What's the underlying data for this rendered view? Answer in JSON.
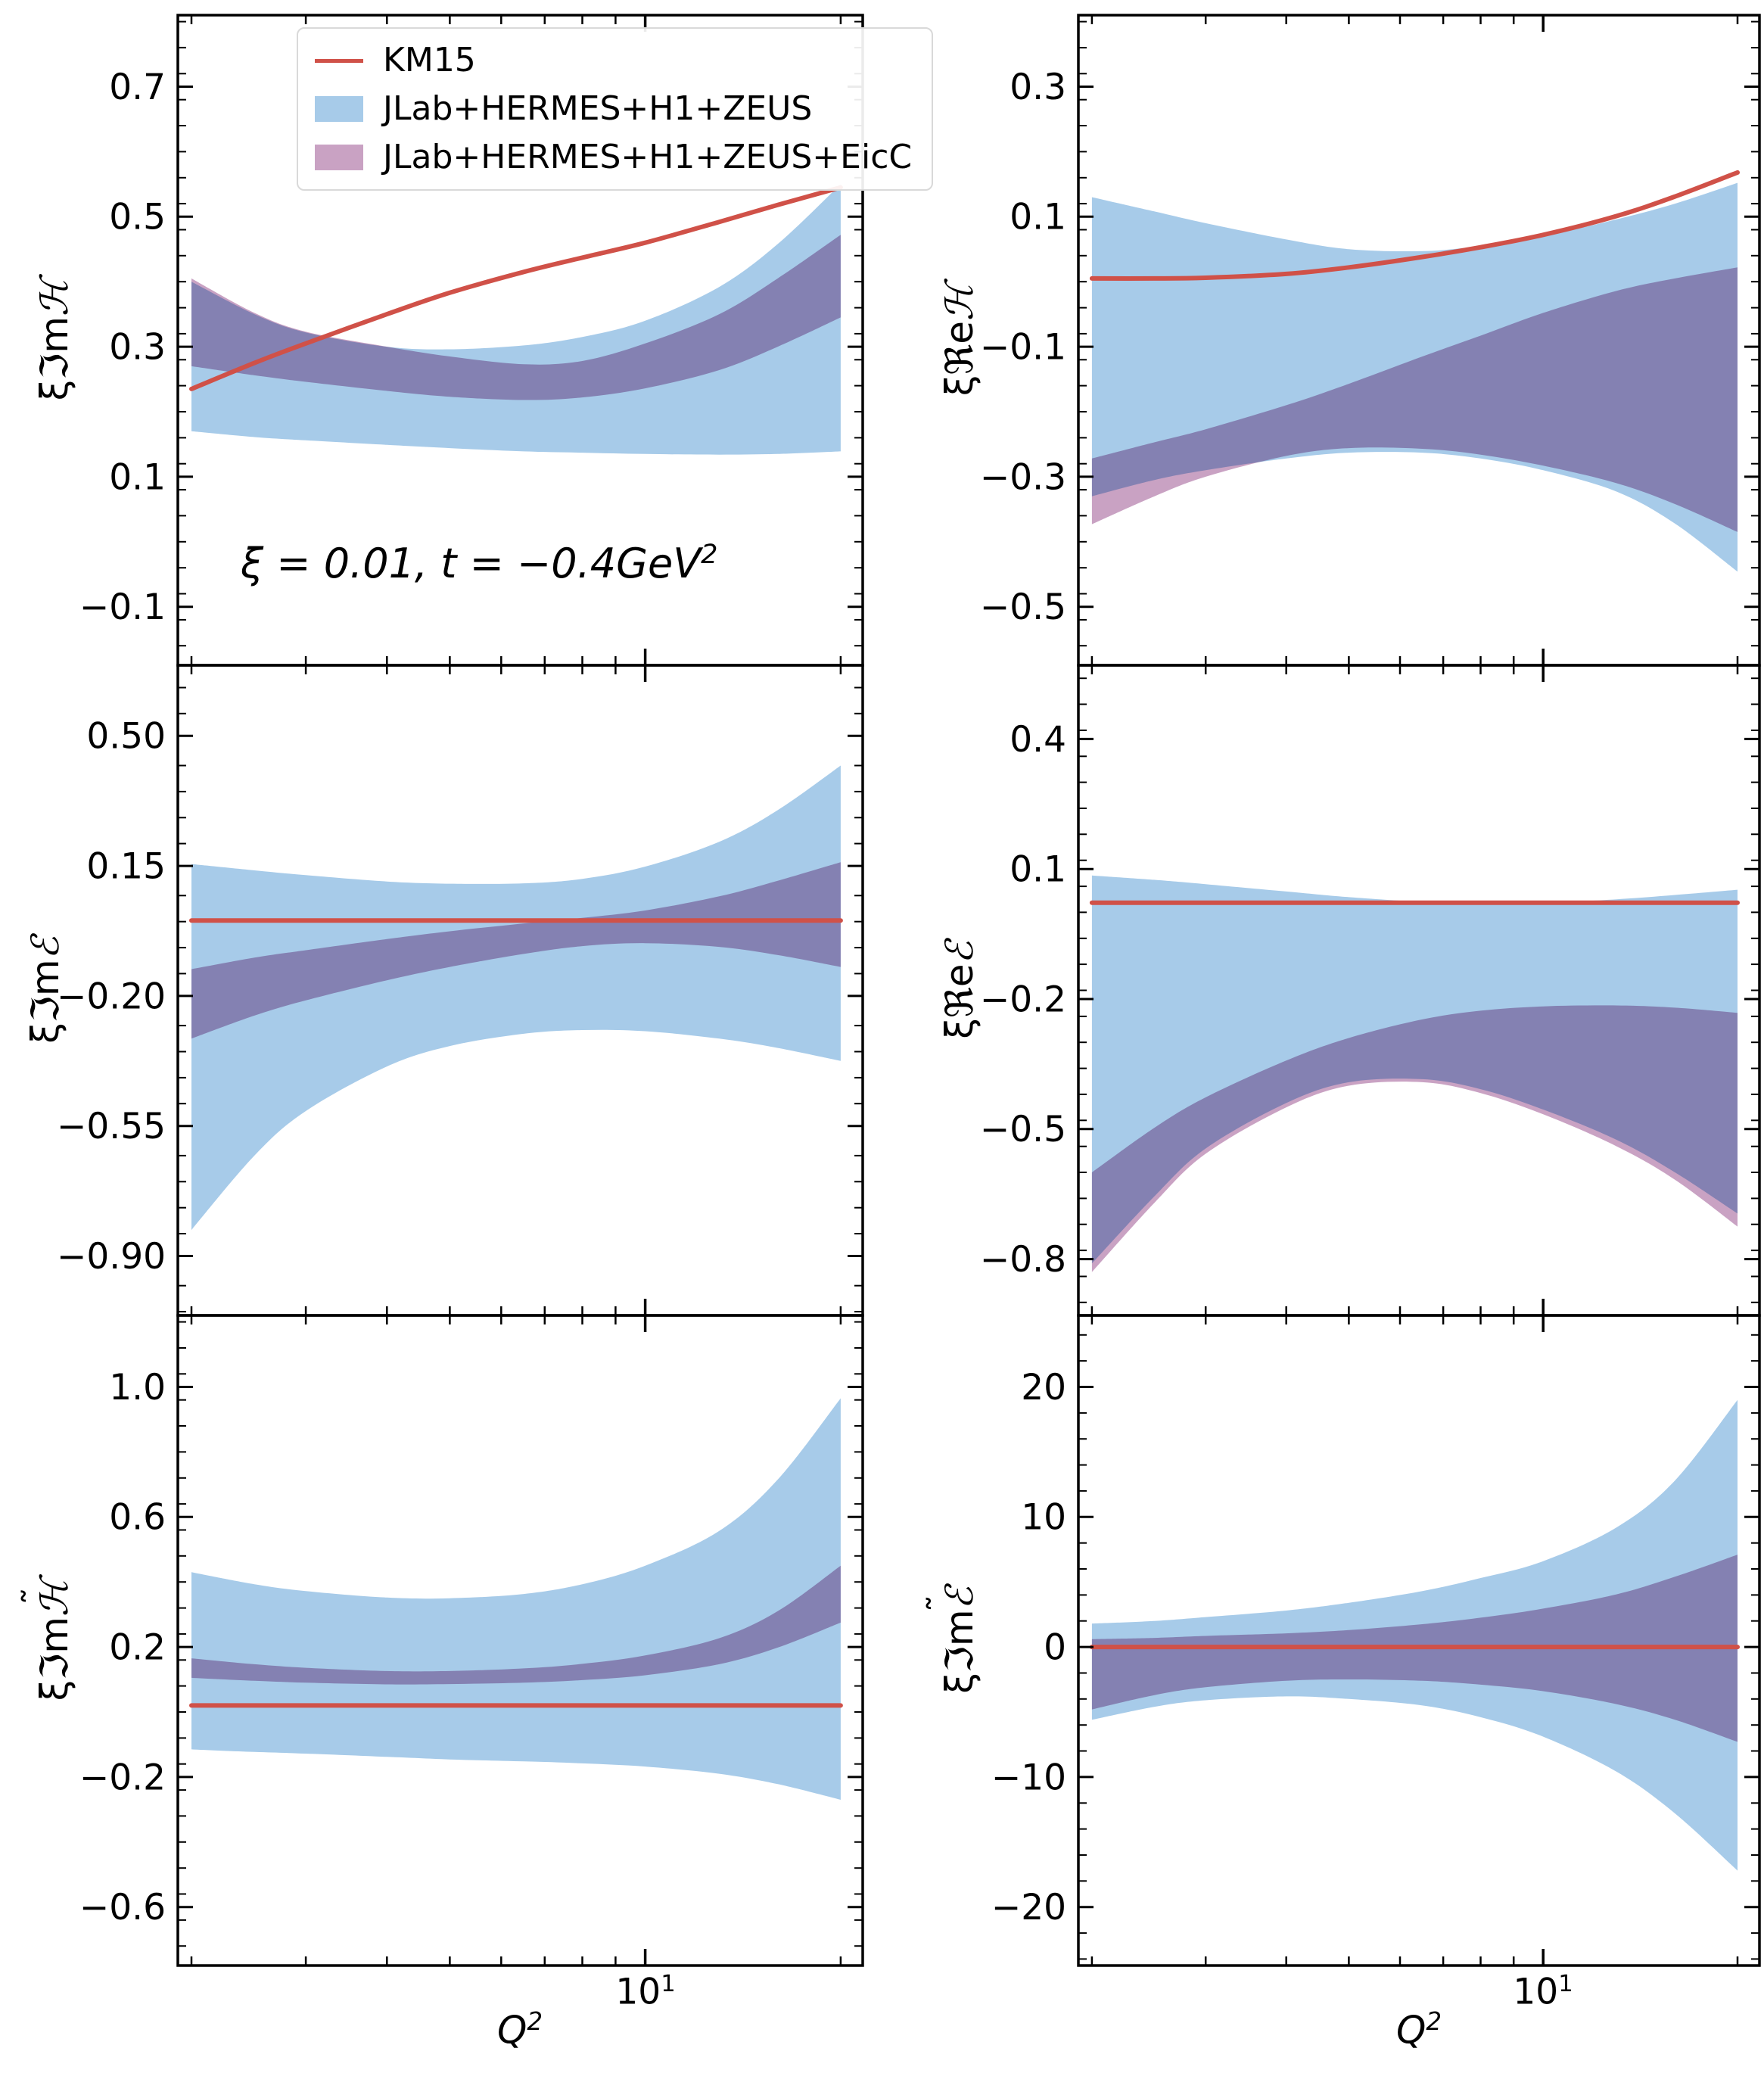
{
  "figure": {
    "annotation": {
      "text": "ξ = 0.01, t = −0.4GeV",
      "sup": "2"
    },
    "xaxis": {
      "label_base": "Q",
      "label_sup": "2",
      "major_tick_base": "10",
      "major_tick_sup": "1"
    }
  },
  "chart_data": {
    "type": "area",
    "x_scale": "log",
    "xlabel": "Q^2",
    "x_range": [
      2,
      20
    ],
    "x_axis_log10_limits": [
      0.28,
      1.335
    ],
    "x_major_ticks": [
      10
    ],
    "x_minor_ticks": [
      2,
      3,
      4,
      5,
      6,
      7,
      8,
      9,
      20
    ],
    "grid": false,
    "legend_position": "upper-left of first panel",
    "legend": [
      {
        "series": "km15",
        "type": "line",
        "label": "KM15"
      },
      {
        "series": "band_wide",
        "type": "band",
        "label": "JLab+HERMES+H1+ZEUS"
      },
      {
        "series": "band_eicc",
        "type": "band",
        "label": "JLab+HERMES+H1+ZEUS+EicC"
      }
    ],
    "colors": {
      "km15": "#d05148",
      "band_wide": "#a7cbe9",
      "band_eicc": "#c9a2c3",
      "band_overlap_seen": "#8680b4",
      "axes": "#000000"
    },
    "x": [
      2,
      2.5,
      3,
      4,
      5,
      6.5,
      8,
      10,
      13,
      16,
      20
    ],
    "panels": [
      {
        "name": "xi-Im-H",
        "col": 0,
        "row": 0,
        "ylabel_prefix": "ξℑm",
        "ylabel_letter": "ℋ",
        "ylabel_tilde": "",
        "ylim": [
          -0.19,
          0.81
        ],
        "yticks": [
          {
            "v": 0.7,
            "label": "0.7"
          },
          {
            "v": 0.5,
            "label": "0.5"
          },
          {
            "v": 0.3,
            "label": "0.3"
          },
          {
            "v": 0.1,
            "label": "0.1"
          },
          {
            "v": -0.1,
            "label": "−0.1"
          }
        ],
        "y_minor_step": 0.04,
        "km15": [
          0.235,
          0.275,
          0.305,
          0.35,
          0.383,
          0.415,
          0.437,
          0.46,
          0.492,
          0.518,
          0.545
        ],
        "band_wide_lo": [
          0.17,
          0.161,
          0.156,
          0.149,
          0.144,
          0.139,
          0.137,
          0.135,
          0.134,
          0.135,
          0.139
        ],
        "band_wide_hi": [
          0.4,
          0.35,
          0.322,
          0.3,
          0.296,
          0.302,
          0.315,
          0.34,
          0.392,
          0.458,
          0.55
        ],
        "band_eicc_lo": [
          0.27,
          0.256,
          0.246,
          0.232,
          0.223,
          0.218,
          0.222,
          0.236,
          0.264,
          0.3,
          0.345
        ],
        "band_eicc_hi": [
          0.405,
          0.352,
          0.323,
          0.3,
          0.285,
          0.273,
          0.278,
          0.305,
          0.35,
          0.405,
          0.472
        ]
      },
      {
        "name": "xi-Re-H",
        "col": 1,
        "row": 0,
        "ylabel_prefix": "ξℜe",
        "ylabel_letter": "ℋ",
        "ylabel_tilde": "",
        "ylim": [
          -0.59,
          0.41
        ],
        "yticks": [
          {
            "v": 0.3,
            "label": "0.3"
          },
          {
            "v": 0.1,
            "label": "0.1"
          },
          {
            "v": -0.1,
            "label": "−0.1"
          },
          {
            "v": -0.3,
            "label": "−0.3"
          },
          {
            "v": -0.5,
            "label": "−0.5"
          }
        ],
        "y_minor_step": 0.04,
        "km15": [
          0.005,
          0.005,
          0.006,
          0.012,
          0.022,
          0.038,
          0.053,
          0.072,
          0.101,
          0.131,
          0.168
        ],
        "band_wide_lo": [
          -0.33,
          -0.305,
          -0.29,
          -0.272,
          -0.263,
          -0.263,
          -0.272,
          -0.29,
          -0.323,
          -0.372,
          -0.446
        ],
        "band_wide_hi": [
          0.13,
          0.108,
          0.09,
          0.065,
          0.05,
          0.047,
          0.055,
          0.07,
          0.096,
          0.12,
          0.152
        ],
        "band_eicc_lo": [
          -0.373,
          -0.33,
          -0.3,
          -0.268,
          -0.256,
          -0.257,
          -0.266,
          -0.283,
          -0.31,
          -0.342,
          -0.385
        ],
        "band_eicc_hi": [
          -0.272,
          -0.247,
          -0.227,
          -0.19,
          -0.157,
          -0.115,
          -0.083,
          -0.048,
          -0.014,
          0.005,
          0.022
        ]
      },
      {
        "name": "xi-Im-E",
        "col": 0,
        "row": 1,
        "ylabel_prefix": "ξℑm",
        "ylabel_letter": "ℰ",
        "ylabel_tilde": "",
        "ylim": [
          -1.06,
          0.69
        ],
        "yticks": [
          {
            "v": 0.5,
            "label": "0.50"
          },
          {
            "v": 0.15,
            "label": "0.15"
          },
          {
            "v": -0.2,
            "label": "−0.20"
          },
          {
            "v": -0.55,
            "label": "−0.55"
          },
          {
            "v": -0.9,
            "label": "−0.90"
          }
        ],
        "y_minor_step": 0.07,
        "km15": [
          0.003,
          0.003,
          0.003,
          0.003,
          0.003,
          0.003,
          0.003,
          0.003,
          0.003,
          0.003,
          0.003
        ],
        "band_wide_lo": [
          -0.83,
          -0.63,
          -0.51,
          -0.39,
          -0.335,
          -0.302,
          -0.292,
          -0.295,
          -0.315,
          -0.34,
          -0.375
        ],
        "band_wide_hi": [
          0.155,
          0.138,
          0.125,
          0.108,
          0.102,
          0.103,
          0.115,
          0.148,
          0.215,
          0.3,
          0.42
        ],
        "band_eicc_lo": [
          -0.315,
          -0.253,
          -0.212,
          -0.158,
          -0.122,
          -0.087,
          -0.066,
          -0.058,
          -0.068,
          -0.09,
          -0.122
        ],
        "band_eicc_hi": [
          -0.128,
          -0.097,
          -0.077,
          -0.047,
          -0.026,
          -0.005,
          0.01,
          0.03,
          0.068,
          0.11,
          0.16
        ]
      },
      {
        "name": "xi-Re-E",
        "col": 1,
        "row": 1,
        "ylabel_prefix": "ξℜe",
        "ylabel_letter": "ℰ",
        "ylabel_tilde": "",
        "ylim": [
          -0.93,
          0.57
        ],
        "yticks": [
          {
            "v": 0.4,
            "label": "0.4"
          },
          {
            "v": 0.1,
            "label": "0.1"
          },
          {
            "v": -0.2,
            "label": "−0.2"
          },
          {
            "v": -0.5,
            "label": "−0.5"
          },
          {
            "v": -0.8,
            "label": "−0.8"
          }
        ],
        "y_minor_step": 0.06,
        "km15": [
          0.022,
          0.022,
          0.022,
          0.022,
          0.022,
          0.022,
          0.022,
          0.022,
          0.022,
          0.022,
          0.022
        ],
        "band_wide_lo": [
          -0.81,
          -0.655,
          -0.545,
          -0.44,
          -0.392,
          -0.385,
          -0.408,
          -0.455,
          -0.525,
          -0.6,
          -0.695
        ],
        "band_wide_hi": [
          0.085,
          0.075,
          0.065,
          0.048,
          0.035,
          0.024,
          0.02,
          0.022,
          0.03,
          0.04,
          0.052
        ],
        "band_eicc_lo": [
          -0.83,
          -0.67,
          -0.557,
          -0.45,
          -0.4,
          -0.392,
          -0.417,
          -0.466,
          -0.54,
          -0.617,
          -0.725
        ],
        "band_eicc_hi": [
          -0.6,
          -0.497,
          -0.427,
          -0.342,
          -0.29,
          -0.247,
          -0.227,
          -0.217,
          -0.215,
          -0.22,
          -0.232
        ]
      },
      {
        "name": "xi-Im-H-tilde",
        "col": 0,
        "row": 2,
        "ylabel_prefix": "ξℑm",
        "ylabel_letter": "ℋ",
        "ylabel_tilde": "˜",
        "ylim": [
          -0.78,
          1.22
        ],
        "yticks": [
          {
            "v": 1.0,
            "label": "1.0"
          },
          {
            "v": 0.6,
            "label": "0.6"
          },
          {
            "v": 0.2,
            "label": "0.2"
          },
          {
            "v": -0.2,
            "label": "−0.2"
          },
          {
            "v": -0.6,
            "label": "−0.6"
          }
        ],
        "y_minor_step": 0.08,
        "km15": [
          0.02,
          0.02,
          0.02,
          0.02,
          0.02,
          0.02,
          0.02,
          0.02,
          0.02,
          0.02,
          0.02
        ],
        "band_wide_lo": [
          -0.115,
          -0.123,
          -0.128,
          -0.138,
          -0.146,
          -0.152,
          -0.158,
          -0.168,
          -0.19,
          -0.222,
          -0.27
        ],
        "band_wide_hi": [
          0.43,
          0.393,
          0.372,
          0.352,
          0.35,
          0.363,
          0.393,
          0.45,
          0.557,
          0.715,
          0.965
        ],
        "band_eicc_lo": [
          0.105,
          0.096,
          0.09,
          0.085,
          0.086,
          0.09,
          0.098,
          0.113,
          0.147,
          0.198,
          0.275
        ],
        "band_eicc_hi": [
          0.165,
          0.147,
          0.136,
          0.126,
          0.126,
          0.134,
          0.148,
          0.174,
          0.227,
          0.31,
          0.45
        ]
      },
      {
        "name": "xi-Im-E-tilde",
        "col": 1,
        "row": 2,
        "ylabel_prefix": "ξℑm",
        "ylabel_letter": "ℰ",
        "ylabel_tilde": "˜",
        "ylim": [
          -24.5,
          25.5
        ],
        "yticks": [
          {
            "v": 20,
            "label": "20"
          },
          {
            "v": 10,
            "label": "10"
          },
          {
            "v": 0,
            "label": "0"
          },
          {
            "v": -10,
            "label": "−10"
          },
          {
            "v": -20,
            "label": "−20"
          }
        ],
        "y_minor_step": 2,
        "km15": [
          0,
          0,
          0,
          0,
          0,
          0,
          0,
          0,
          0,
          0,
          0
        ],
        "band_wide_lo": [
          -5.6,
          -4.6,
          -4.1,
          -3.8,
          -4.0,
          -4.5,
          -5.4,
          -6.9,
          -9.6,
          -12.8,
          -17.2
        ],
        "band_wide_hi": [
          1.8,
          2.0,
          2.3,
          2.8,
          3.4,
          4.3,
          5.3,
          6.6,
          9.2,
          12.8,
          19.0
        ],
        "band_eicc_lo": [
          -4.8,
          -3.7,
          -3.1,
          -2.6,
          -2.5,
          -2.6,
          -2.9,
          -3.4,
          -4.4,
          -5.6,
          -7.3
        ],
        "band_eicc_hi": [
          0.6,
          0.7,
          0.85,
          1.05,
          1.3,
          1.75,
          2.25,
          2.95,
          4.05,
          5.4,
          7.1
        ]
      }
    ]
  }
}
